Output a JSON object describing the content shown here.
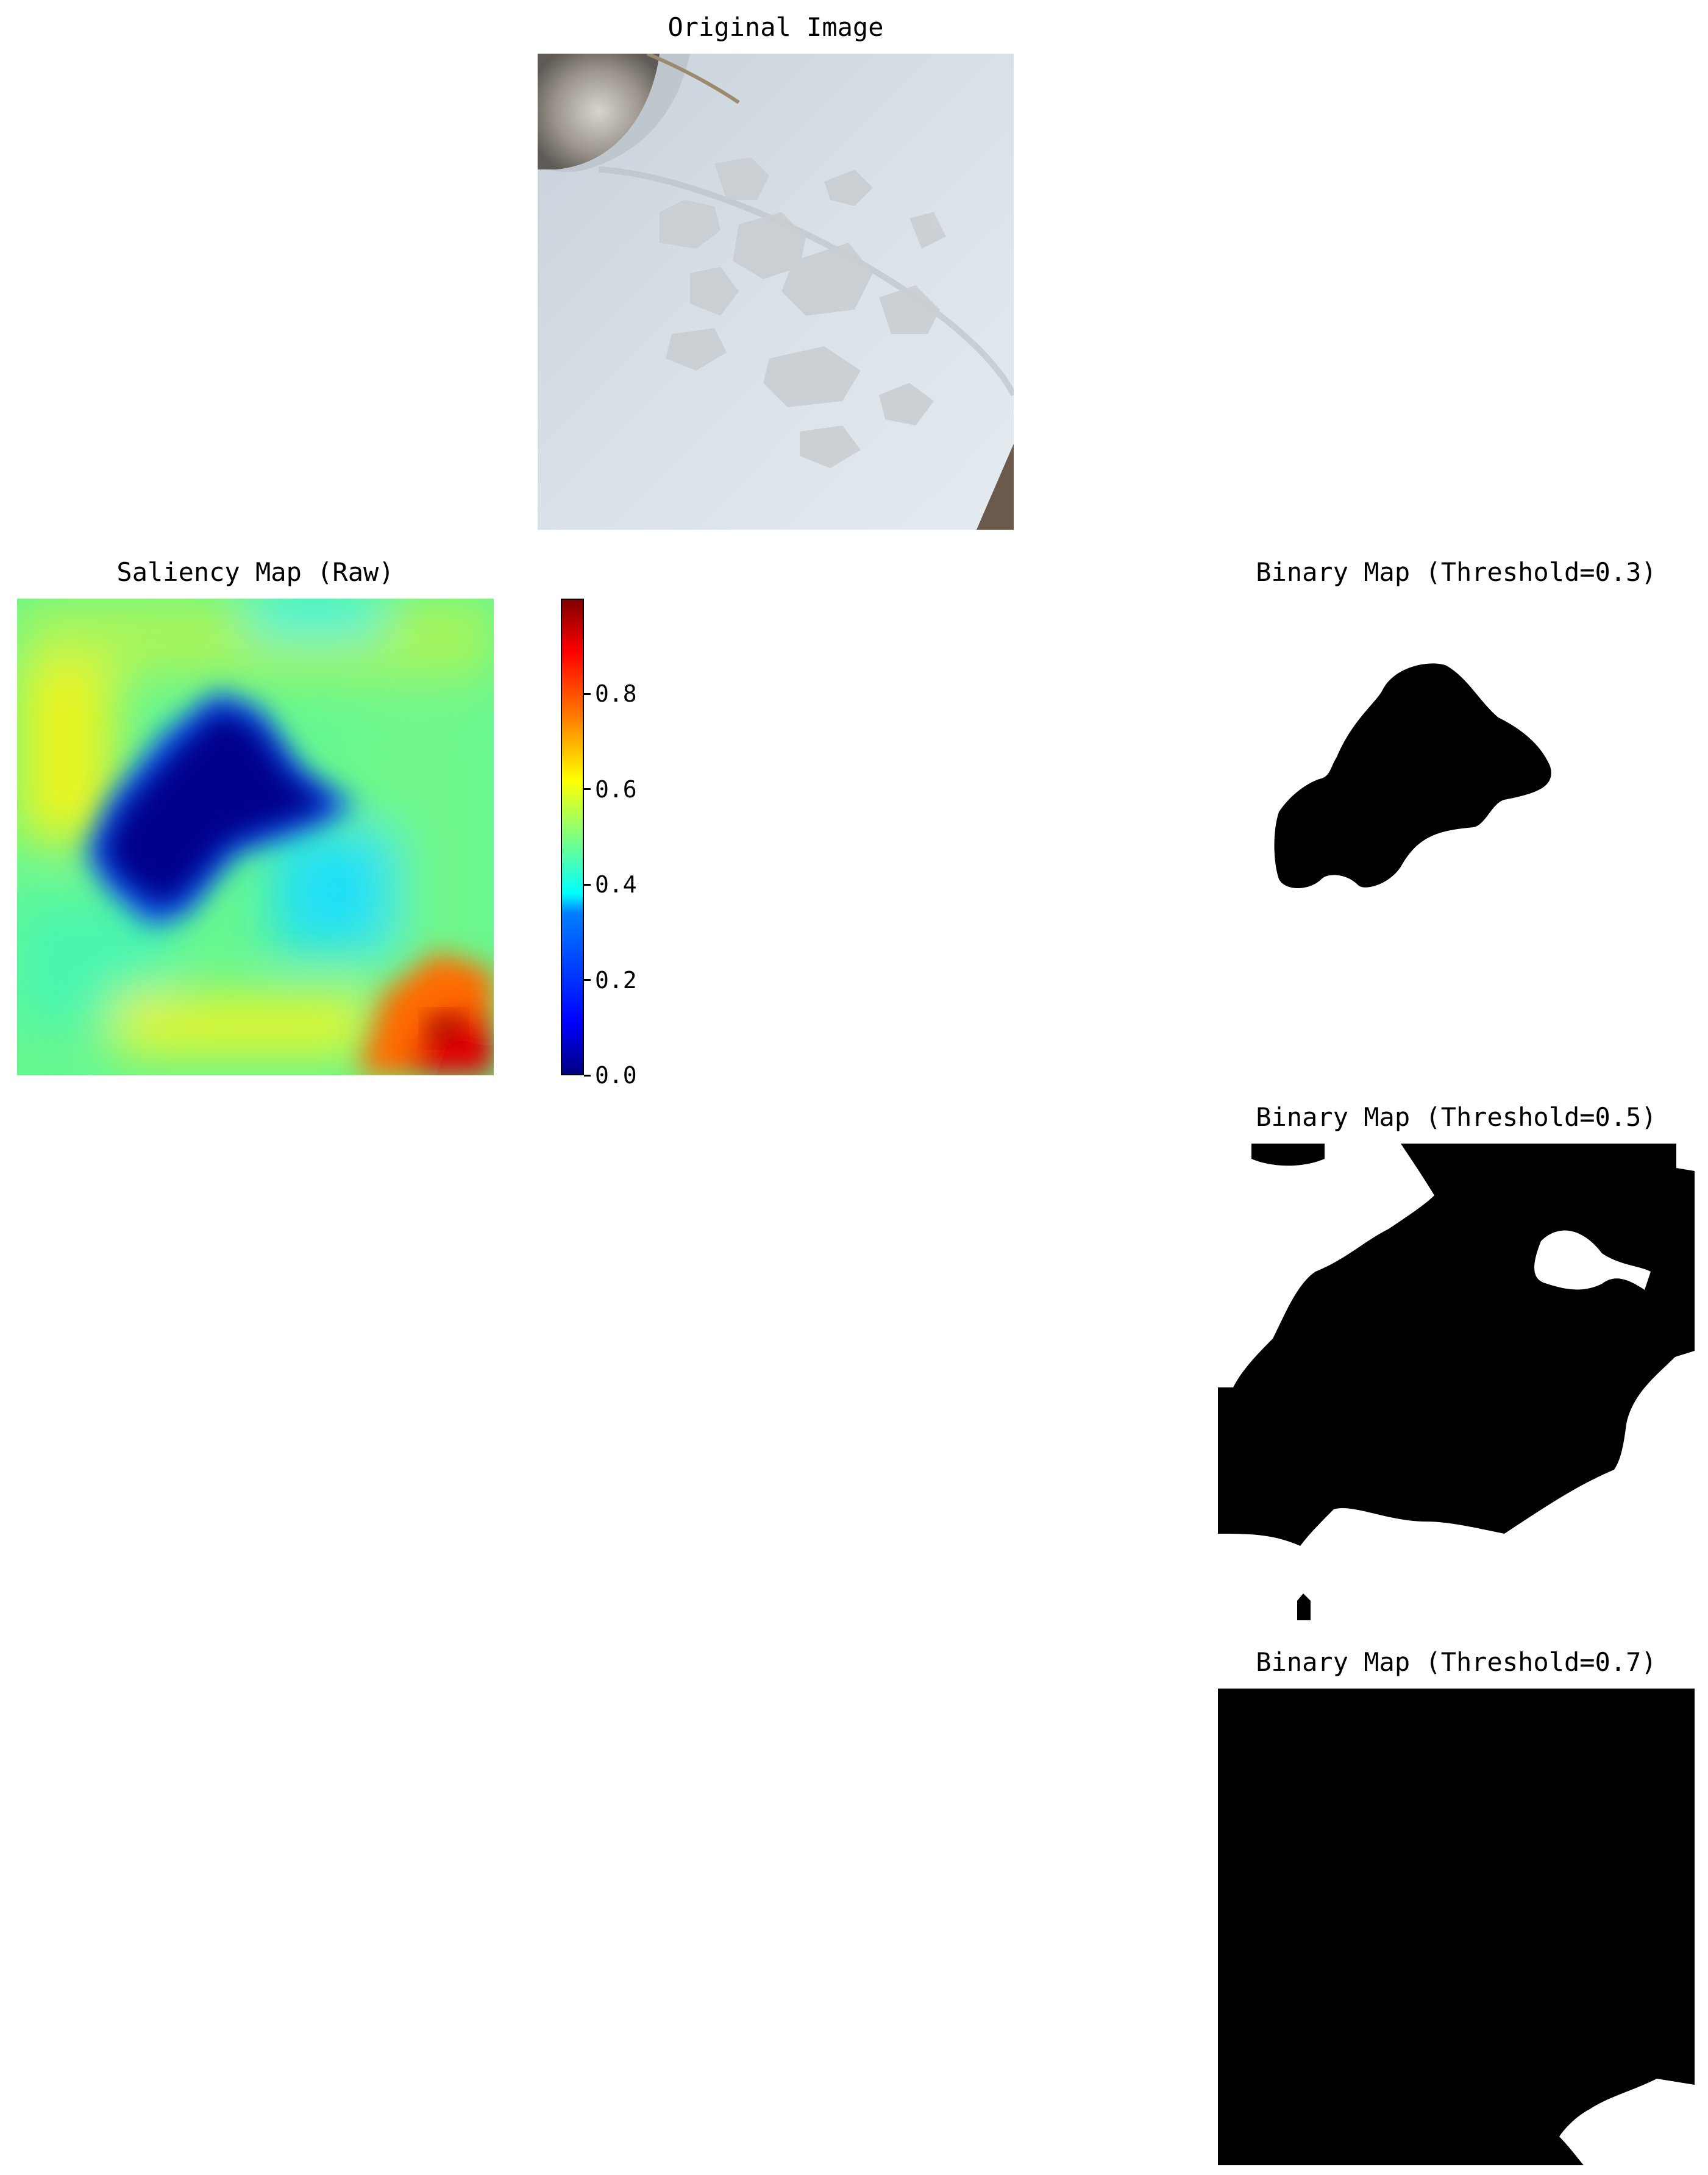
{
  "figure": {
    "original_title": "Original Image",
    "saliency_title": "Saliency Map (Raw)",
    "binary_titles": [
      "Binary Map (Threshold=0.3)",
      "Binary Map (Threshold=0.5)",
      "Binary Map (Threshold=0.7)"
    ]
  },
  "chart_data": [
    {
      "type": "heatmap",
      "title": "Saliency Map (Raw)",
      "colormap": "jet",
      "colorbar": {
        "range": [
          0.0,
          1.0
        ],
        "ticks": [
          0.0,
          0.2,
          0.4,
          0.6,
          0.8
        ],
        "tick_labels": [
          "0.0",
          "0.2",
          "0.4",
          "0.6",
          "0.8"
        ]
      },
      "description_values": {
        "background_level": 0.5,
        "central_blob_level": 0.0,
        "bottom_right_peak_level": 1.0
      }
    },
    {
      "type": "heatmap",
      "title": "Binary Map (Threshold=0.3)",
      "threshold": 0.3,
      "colors": [
        "#ffffff",
        "#000000"
      ]
    },
    {
      "type": "heatmap",
      "title": "Binary Map (Threshold=0.5)",
      "threshold": 0.5,
      "colors": [
        "#ffffff",
        "#000000"
      ]
    },
    {
      "type": "heatmap",
      "title": "Binary Map (Threshold=0.7)",
      "threshold": 0.7,
      "colors": [
        "#ffffff",
        "#000000"
      ]
    }
  ]
}
